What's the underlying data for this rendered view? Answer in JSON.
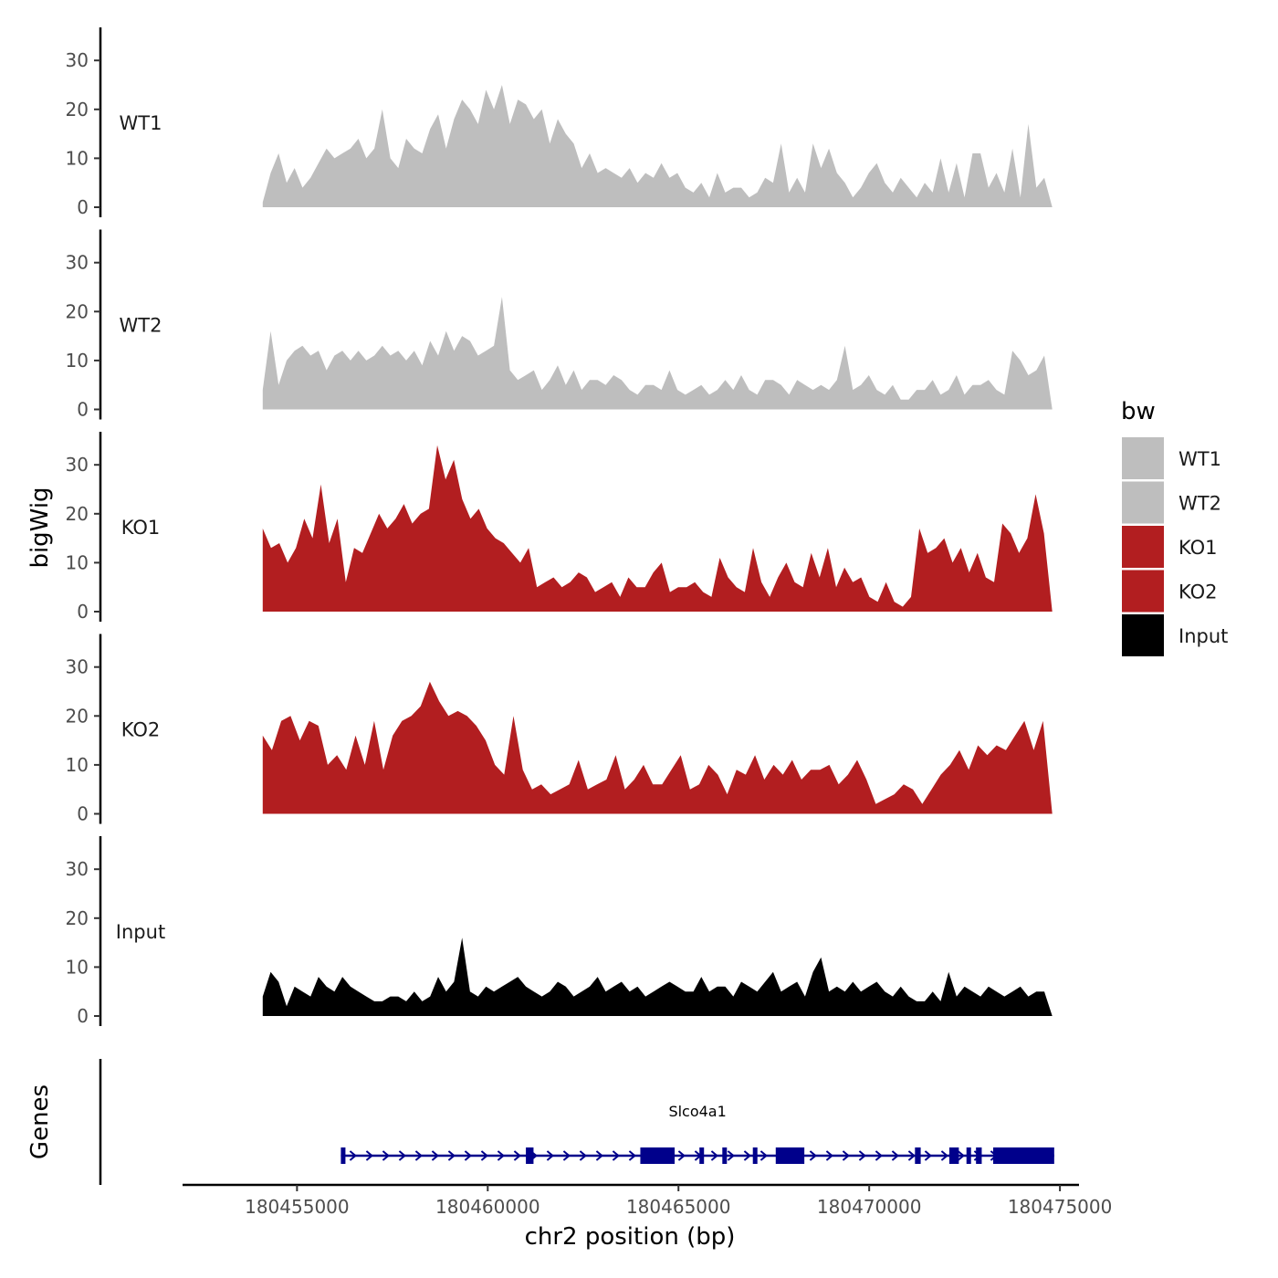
{
  "chart_data": {
    "type": "area",
    "ylabel": "bigWig",
    "xlabel": "chr2 position (bp)",
    "xlim": [
      180452000,
      180475500
    ],
    "region": [
      180454100,
      180474800
    ],
    "ylim": [
      0,
      36
    ],
    "yticks": [
      0,
      10,
      20,
      30
    ],
    "ytick_labels": [
      "0",
      "10",
      "20",
      "30"
    ],
    "xticks": [
      180455000,
      180460000,
      180465000,
      180470000,
      180475000
    ],
    "xtick_labels": [
      "180455000",
      "180460000",
      "180465000",
      "180470000",
      "180475000"
    ],
    "tracks": [
      {
        "name": "WT1",
        "color": "#BEBEBE",
        "values": [
          1,
          7,
          11,
          5,
          8,
          4,
          6,
          9,
          12,
          10,
          11,
          12,
          14,
          10,
          12,
          20,
          10,
          8,
          14,
          12,
          11,
          16,
          19,
          12,
          18,
          22,
          20,
          17,
          24,
          20,
          25,
          17,
          22,
          21,
          18,
          20,
          13,
          18,
          15,
          13,
          8,
          11,
          7,
          8,
          7,
          6,
          8,
          5,
          7,
          6,
          9,
          6,
          7,
          4,
          3,
          5,
          2,
          7,
          3,
          4,
          4,
          2,
          3,
          6,
          5,
          13,
          3,
          6,
          3,
          13,
          8,
          12,
          7,
          5,
          2,
          4,
          7,
          9,
          5,
          3,
          6,
          4,
          2,
          5,
          3,
          10,
          3,
          9,
          2,
          11,
          11,
          4,
          7,
          3,
          12,
          2,
          17,
          4,
          6,
          0
        ]
      },
      {
        "name": "WT2",
        "color": "#BEBEBE",
        "values": [
          4,
          16,
          5,
          10,
          12,
          13,
          11,
          12,
          8,
          11,
          12,
          10,
          12,
          10,
          11,
          13,
          11,
          12,
          10,
          12,
          9,
          14,
          11,
          16,
          12,
          15,
          14,
          11,
          12,
          13,
          23,
          8,
          6,
          7,
          8,
          4,
          6,
          9,
          5,
          8,
          4,
          6,
          6,
          5,
          7,
          6,
          4,
          3,
          5,
          5,
          4,
          8,
          4,
          3,
          4,
          5,
          3,
          4,
          6,
          4,
          7,
          4,
          3,
          6,
          6,
          5,
          3,
          6,
          5,
          4,
          5,
          4,
          6,
          13,
          4,
          5,
          7,
          4,
          3,
          5,
          2,
          2,
          4,
          4,
          6,
          3,
          4,
          7,
          3,
          5,
          5,
          6,
          4,
          3,
          12,
          10,
          7,
          8,
          11,
          0
        ]
      },
      {
        "name": "KO1",
        "color": "#B21E20",
        "values": [
          17,
          13,
          14,
          10,
          13,
          19,
          15,
          26,
          14,
          19,
          6,
          13,
          12,
          16,
          20,
          17,
          19,
          22,
          18,
          20,
          21,
          34,
          27,
          31,
          23,
          19,
          21,
          17,
          15,
          14,
          12,
          10,
          13,
          5,
          6,
          7,
          5,
          6,
          8,
          7,
          4,
          5,
          6,
          3,
          7,
          5,
          5,
          8,
          10,
          4,
          5,
          5,
          6,
          4,
          3,
          11,
          7,
          5,
          4,
          13,
          6,
          3,
          7,
          10,
          6,
          5,
          12,
          7,
          13,
          5,
          9,
          6,
          7,
          3,
          2,
          6,
          2,
          1,
          3,
          17,
          12,
          13,
          15,
          10,
          13,
          8,
          12,
          7,
          6,
          18,
          16,
          12,
          15,
          24,
          16,
          0
        ]
      },
      {
        "name": "KO2",
        "color": "#B21E20",
        "values": [
          16,
          13,
          19,
          20,
          15,
          19,
          18,
          10,
          12,
          9,
          16,
          10,
          19,
          9,
          16,
          19,
          20,
          22,
          27,
          23,
          20,
          21,
          20,
          18,
          15,
          10,
          8,
          20,
          9,
          5,
          6,
          4,
          5,
          6,
          11,
          5,
          6,
          7,
          12,
          5,
          7,
          10,
          6,
          6,
          9,
          12,
          5,
          6,
          10,
          8,
          4,
          9,
          8,
          12,
          7,
          10,
          8,
          11,
          7,
          9,
          9,
          10,
          6,
          8,
          11,
          7,
          2,
          3,
          4,
          6,
          5,
          2,
          5,
          8,
          10,
          13,
          9,
          14,
          12,
          14,
          13,
          16,
          19,
          13,
          19,
          0
        ]
      },
      {
        "name": "Input",
        "color": "#000000",
        "values": [
          4,
          9,
          7,
          2,
          6,
          5,
          4,
          8,
          6,
          5,
          8,
          6,
          5,
          4,
          3,
          3,
          4,
          4,
          3,
          5,
          3,
          4,
          8,
          5,
          7,
          16,
          5,
          4,
          6,
          5,
          6,
          7,
          8,
          6,
          5,
          4,
          5,
          7,
          6,
          4,
          5,
          6,
          8,
          5,
          6,
          7,
          5,
          6,
          4,
          5,
          6,
          7,
          6,
          5,
          5,
          8,
          5,
          6,
          6,
          4,
          7,
          6,
          5,
          7,
          9,
          5,
          6,
          7,
          4,
          9,
          12,
          5,
          6,
          5,
          7,
          5,
          6,
          7,
          5,
          4,
          6,
          4,
          3,
          3,
          5,
          3,
          9,
          4,
          6,
          5,
          4,
          6,
          5,
          4,
          5,
          6,
          4,
          5,
          5,
          0
        ]
      }
    ],
    "legend": {
      "title": "bw",
      "position": "right",
      "entries": [
        {
          "label": "WT1",
          "color": "#BEBEBE"
        },
        {
          "label": "WT2",
          "color": "#BEBEBE"
        },
        {
          "label": "KO1",
          "color": "#B21E20"
        },
        {
          "label": "KO2",
          "color": "#B21E20"
        },
        {
          "label": "Input",
          "color": "#000000"
        }
      ]
    },
    "genes": {
      "panel_label": "Genes",
      "color": "#00008B",
      "items": [
        {
          "name": "Slco4a1",
          "start": 180456150,
          "end": 180474850,
          "strand": "+",
          "exons": [
            [
              180456150,
              180456250
            ],
            [
              180461000,
              180461200
            ],
            [
              180464000,
              180464900
            ],
            [
              180465550,
              180465650
            ],
            [
              180466150,
              180466250
            ],
            [
              180466950,
              180467050
            ],
            [
              180467550,
              180468300
            ],
            [
              180471200,
              180471350
            ],
            [
              180472100,
              180472350
            ],
            [
              180472550,
              180472650
            ],
            [
              180472800,
              180472950
            ],
            [
              180473250,
              180474850
            ]
          ]
        }
      ]
    }
  }
}
